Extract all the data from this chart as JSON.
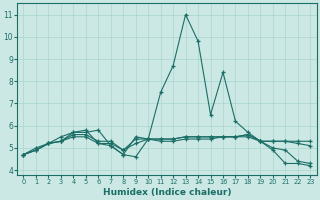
{
  "xlabel": "Humidex (Indice chaleur)",
  "ylabel": "",
  "background_color": "#cce8e4",
  "grid_color": "#aad4ce",
  "line_color": "#1a6e66",
  "xlim": [
    -0.5,
    23.5
  ],
  "ylim": [
    3.8,
    11.5
  ],
  "yticks": [
    4,
    5,
    6,
    7,
    8,
    9,
    10,
    11
  ],
  "xticks": [
    0,
    1,
    2,
    3,
    4,
    5,
    6,
    7,
    8,
    9,
    10,
    11,
    12,
    13,
    14,
    15,
    16,
    17,
    18,
    19,
    20,
    21,
    22,
    23
  ],
  "series": [
    [
      4.7,
      4.9,
      5.2,
      5.5,
      5.7,
      5.7,
      5.8,
      5.1,
      4.7,
      4.6,
      5.4,
      7.5,
      8.7,
      11.0,
      9.8,
      6.5,
      8.4,
      6.2,
      5.7,
      5.3,
      4.9,
      4.3,
      4.3,
      4.2
    ],
    [
      4.7,
      4.9,
      5.2,
      5.3,
      5.6,
      5.6,
      5.3,
      5.3,
      4.9,
      5.4,
      5.4,
      5.4,
      5.4,
      5.5,
      5.5,
      5.5,
      5.5,
      5.5,
      5.6,
      5.3,
      5.3,
      5.3,
      5.2,
      5.1
    ],
    [
      4.7,
      4.9,
      5.2,
      5.3,
      5.7,
      5.8,
      5.2,
      5.1,
      4.7,
      5.5,
      5.4,
      5.4,
      5.4,
      5.5,
      5.5,
      5.5,
      5.5,
      5.5,
      5.6,
      5.3,
      5.0,
      4.9,
      4.4,
      4.3
    ],
    [
      4.7,
      5.0,
      5.2,
      5.3,
      5.5,
      5.5,
      5.2,
      5.2,
      4.9,
      5.2,
      5.4,
      5.3,
      5.3,
      5.4,
      5.4,
      5.4,
      5.5,
      5.5,
      5.5,
      5.3,
      5.3,
      5.3,
      5.3,
      5.3
    ]
  ]
}
